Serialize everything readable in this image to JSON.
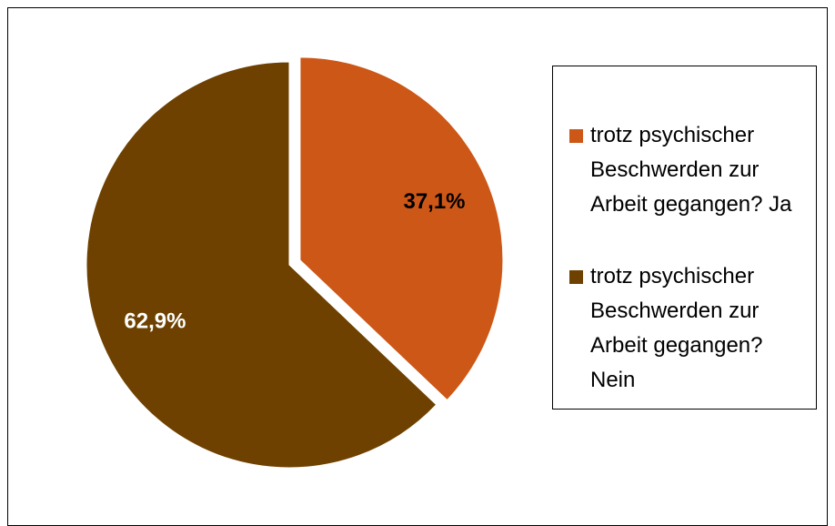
{
  "chart_data": {
    "type": "pie",
    "categories": [
      "trotz psychischer Beschwerden zur Arbeit gegangen? Ja",
      "trotz psychischer Beschwerden zur Arbeit gegangen? Nein"
    ],
    "values": [
      37.1,
      62.9
    ],
    "value_labels": [
      "37,1%",
      "62,9%"
    ],
    "colors": [
      "#cc5717",
      "#6e4100"
    ],
    "legend": "right"
  }
}
